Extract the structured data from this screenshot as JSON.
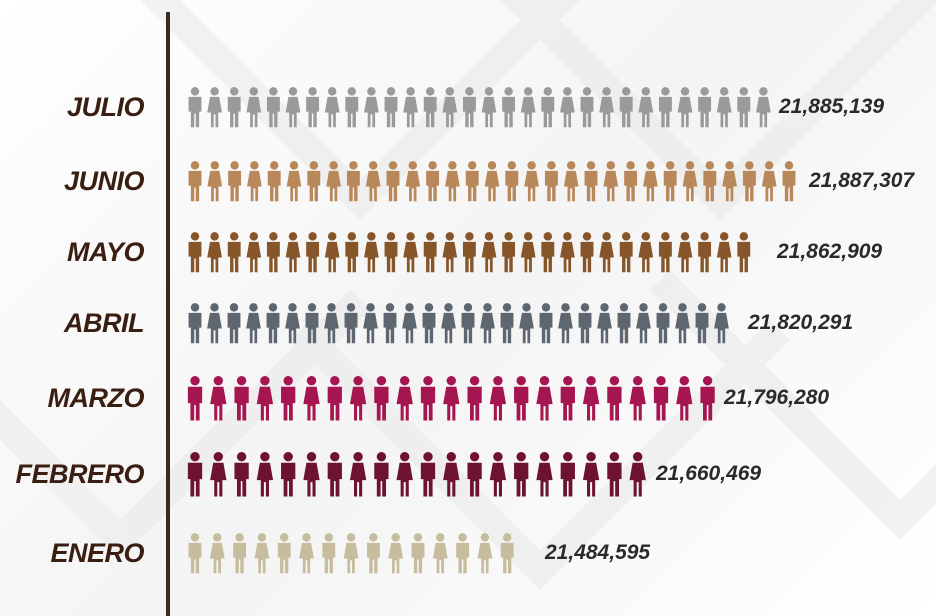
{
  "chart_data": {
    "type": "bar",
    "orientation": "horizontal",
    "style": "pictogram",
    "categories": [
      "JULIO",
      "JUNIO",
      "MAYO",
      "ABRIL",
      "MARZO",
      "FEBRERO",
      "ENERO"
    ],
    "values": [
      21885139,
      21887307,
      21862909,
      21820291,
      21796280,
      21660469,
      21484595
    ],
    "value_labels": [
      "21,885,139",
      "21,887,307",
      "21,862,909",
      "21,820,291",
      "21,796,280",
      "21,660,469",
      "21,484,595"
    ],
    "icon": "person-icon",
    "icon_counts": [
      30,
      31,
      29,
      28,
      23,
      20,
      15
    ],
    "colors": [
      "#9a9a9c",
      "#b8875a",
      "#86562a",
      "#5e6670",
      "#a5154f",
      "#6d1230",
      "#c7bc9d"
    ],
    "title": "",
    "xlabel": "",
    "ylabel": "",
    "grid": false,
    "legend": "none"
  },
  "theme": {
    "axis_color": "#3b2a1f",
    "label_color": "#3a1e12",
    "value_color": "#2a2a2a"
  }
}
